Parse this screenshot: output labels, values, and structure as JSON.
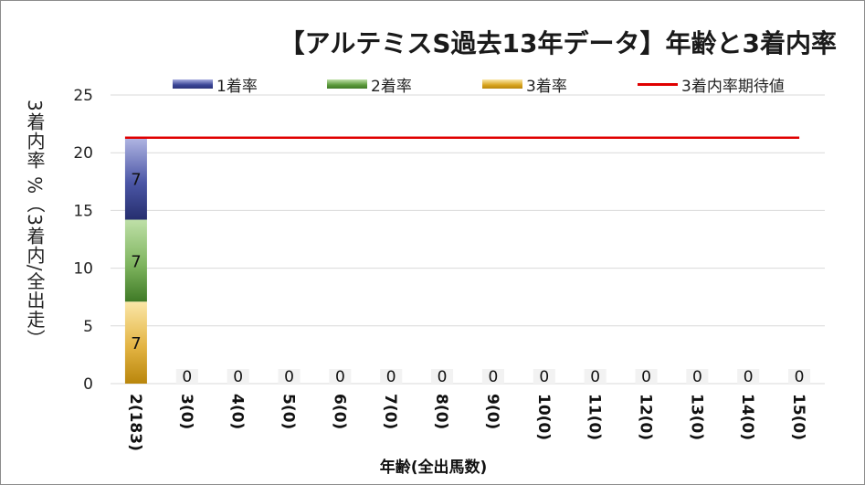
{
  "chart_data": {
    "type": "bar",
    "stacked": true,
    "title": "【アルテミスS過去13年データ】年齢と3着内率",
    "ylabel": "3着内率 %（3着内/全出走）",
    "xlabel": "年齢(全出馬数)",
    "ylim": [
      0,
      25
    ],
    "yticks": [
      0,
      5,
      10,
      15,
      20,
      25
    ],
    "grid": true,
    "legend_position": "top",
    "categories": [
      "2(183)",
      "3(0)",
      "4(0)",
      "5(0)",
      "6(0)",
      "7(0)",
      "8(0)",
      "9(0)",
      "10(0)",
      "11(0)",
      "12(0)",
      "13(0)",
      "14(0)",
      "15(0)"
    ],
    "series": [
      {
        "name": "3着率",
        "color": "#d9a520",
        "values": [
          7.1,
          0,
          0,
          0,
          0,
          0,
          0,
          0,
          0,
          0,
          0,
          0,
          0,
          0
        ]
      },
      {
        "name": "2着率",
        "color": "#6aa84f",
        "values": [
          7.1,
          0,
          0,
          0,
          0,
          0,
          0,
          0,
          0,
          0,
          0,
          0,
          0,
          0
        ]
      },
      {
        "name": "1着率",
        "color": "#4b56a6",
        "values": [
          7.1,
          0,
          0,
          0,
          0,
          0,
          0,
          0,
          0,
          0,
          0,
          0,
          0,
          0
        ]
      }
    ],
    "data_labels": [
      [
        "7",
        "7",
        "7"
      ],
      [
        "0"
      ],
      [
        "0"
      ],
      [
        "0"
      ],
      [
        "0"
      ],
      [
        "0"
      ],
      [
        "0"
      ],
      [
        "0"
      ],
      [
        "0"
      ],
      [
        "0"
      ],
      [
        "0"
      ],
      [
        "0"
      ],
      [
        "0"
      ],
      [
        "0"
      ]
    ],
    "reference_line": {
      "name": "3着内率期待値",
      "value": 21.3,
      "color": "#e00000"
    },
    "legend_order": [
      "1着率",
      "2着率",
      "3着率",
      "3着内率期待値"
    ]
  }
}
